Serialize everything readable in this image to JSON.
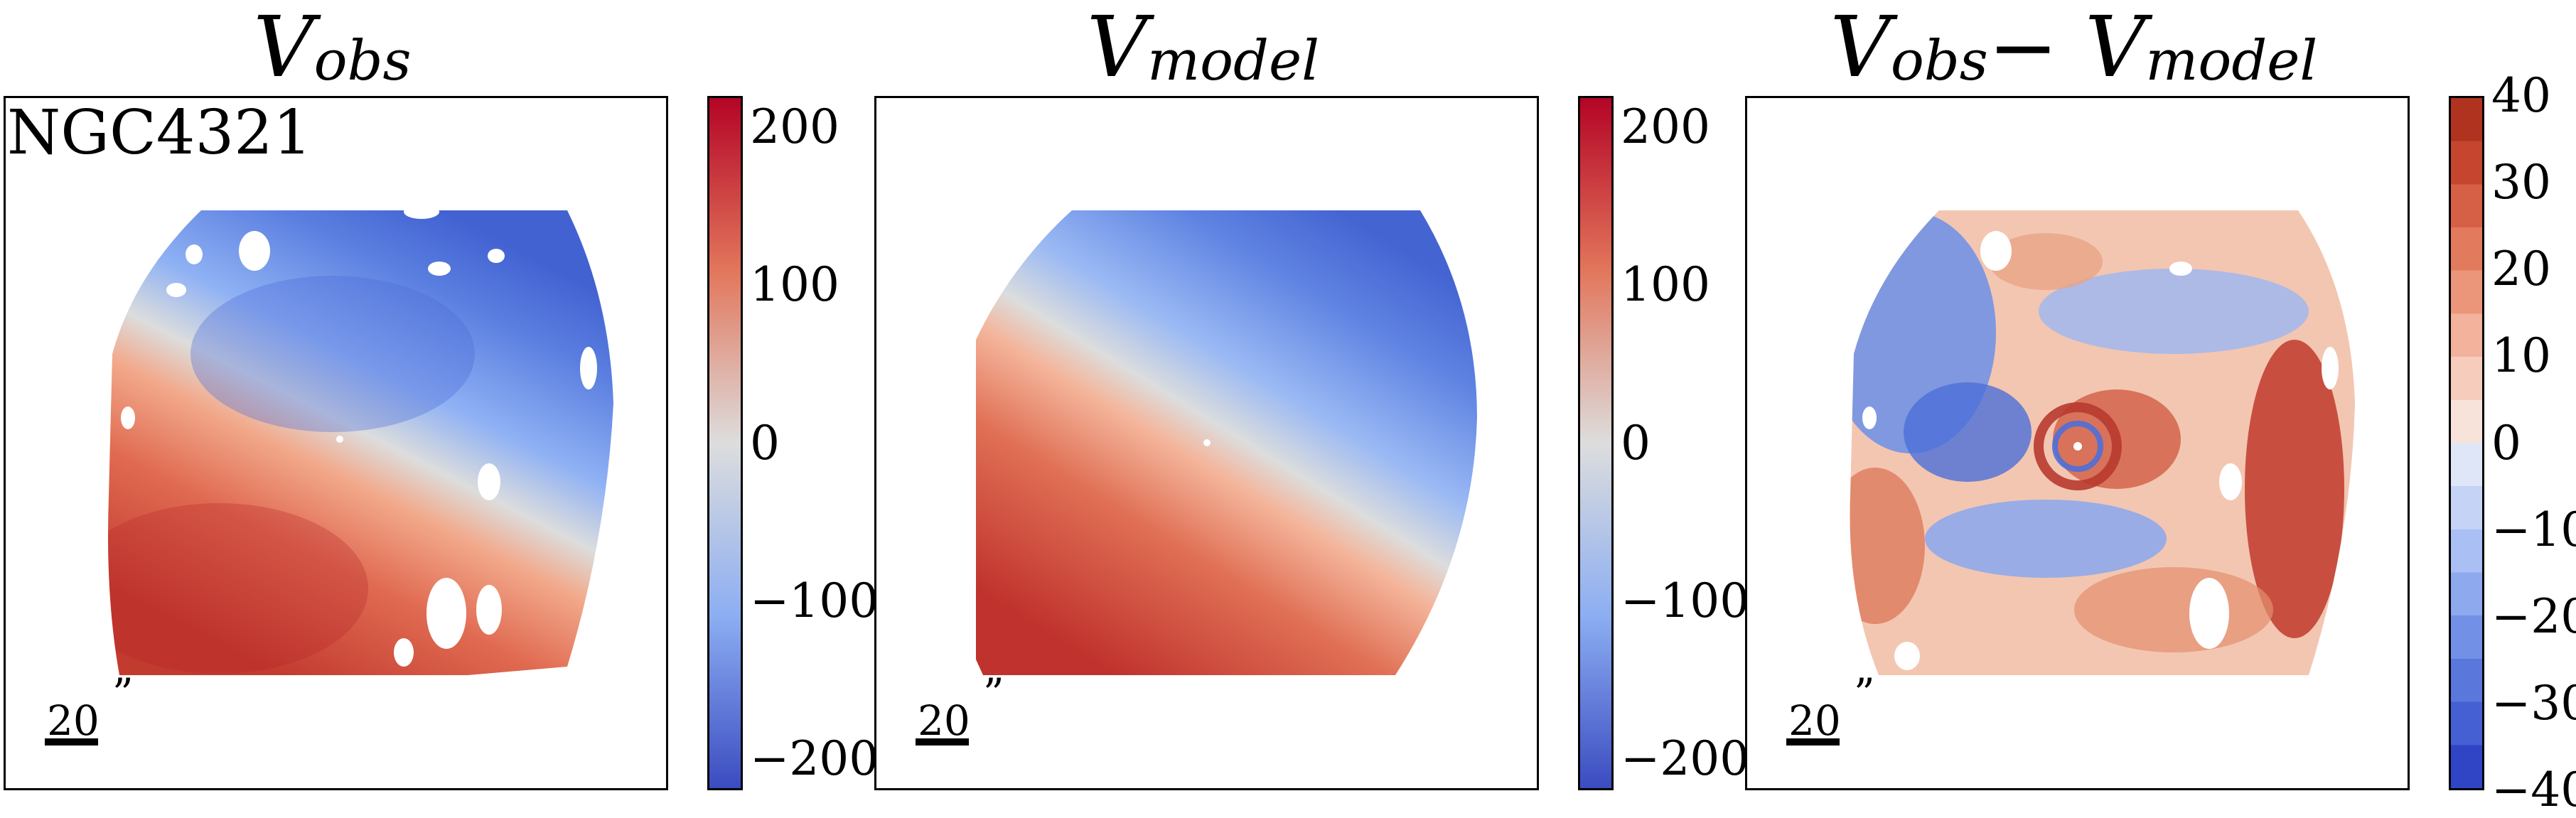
{
  "galaxy": "NGC4321",
  "colors": {
    "neg": "#3b4cc0",
    "mid": "#dddddd",
    "pos": "#b40426"
  },
  "panels": [
    {
      "title_main": "V",
      "title_sub": "obs",
      "title_rest": "",
      "title_sub2": "",
      "scale_value": "20",
      "scale_unit": "”"
    },
    {
      "title_main": "V",
      "title_sub": "model",
      "title_rest": "",
      "title_sub2": "",
      "scale_value": "20",
      "scale_unit": "”"
    },
    {
      "title_main": "V",
      "title_sub": "obs",
      "title_rest": " − V",
      "title_sub2": "model",
      "scale_value": "20",
      "scale_unit": "”"
    }
  ],
  "colorbars": [
    {
      "ticks": [
        "200",
        "100",
        "0",
        "−100",
        "−200"
      ],
      "tick_values": [
        200,
        100,
        0,
        -100,
        -200
      ],
      "vmin": -220,
      "vmax": 220,
      "discrete": false
    },
    {
      "ticks": [
        "200",
        "100",
        "0",
        "−100",
        "−200"
      ],
      "tick_values": [
        200,
        100,
        0,
        -100,
        -200
      ],
      "vmin": -220,
      "vmax": 220,
      "discrete": false
    },
    {
      "ticks": [
        "40",
        "30",
        "20",
        "10",
        "0",
        "−10",
        "−20",
        "−30",
        "−40"
      ],
      "tick_values": [
        40,
        30,
        20,
        10,
        0,
        -10,
        -20,
        -30,
        -40
      ],
      "vmin": -40,
      "vmax": 40,
      "discrete": true,
      "levels": 16
    }
  ],
  "chart_data": {
    "type": "heatmap",
    "maps": [
      {
        "name": "V_obs",
        "quantity": "line-of-sight velocity",
        "range": [
          -220,
          220
        ],
        "pattern": "rotating disk: approaching (blue) north-east, receding (red) south-west"
      },
      {
        "name": "V_model",
        "quantity": "model velocity",
        "range": [
          -220,
          220
        ],
        "pattern": "smooth rotating disk model"
      },
      {
        "name": "V_obs - V_model",
        "quantity": "residual velocity",
        "range": [
          -40,
          40
        ],
        "pattern": "spiral residual structure with central ring"
      }
    ]
  }
}
